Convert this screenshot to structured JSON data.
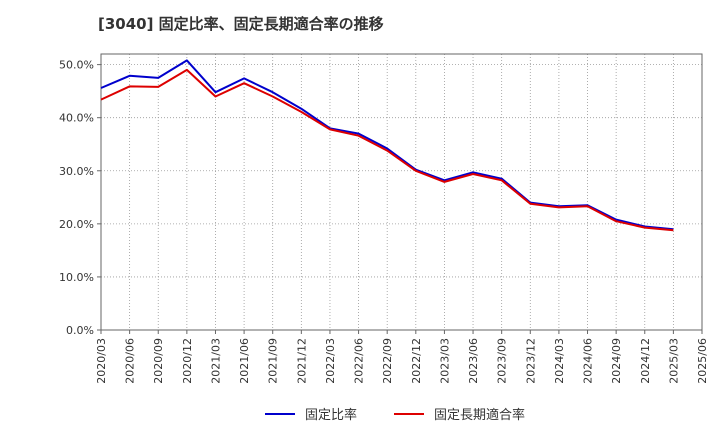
{
  "chart_data": {
    "type": "line",
    "title": "[3040]  固定比率、固定長期適合率の推移",
    "xlabel": "",
    "ylabel": "",
    "ylim": [
      0,
      52
    ],
    "y_ticks": [
      0,
      10,
      20,
      30,
      40,
      50
    ],
    "y_tick_labels": [
      "0.0%",
      "10.0%",
      "20.0%",
      "30.0%",
      "40.0%",
      "50.0%"
    ],
    "grid": true,
    "legend_position": "bottom-center",
    "categories": [
      "2020/03",
      "2020/06",
      "2020/09",
      "2020/12",
      "2021/03",
      "2021/06",
      "2021/09",
      "2021/12",
      "2022/03",
      "2022/06",
      "2022/09",
      "2022/12",
      "2023/03",
      "2023/06",
      "2023/09",
      "2023/12",
      "2024/03",
      "2024/06",
      "2024/09",
      "2024/12",
      "2025/03",
      "2025/06"
    ],
    "series": [
      {
        "name": "固定比率",
        "color": "#0000cc",
        "values": [
          45.6,
          47.9,
          47.5,
          50.8,
          44.8,
          47.4,
          44.8,
          41.7,
          38.0,
          37.0,
          34.2,
          30.2,
          28.2,
          29.7,
          28.5,
          24.0,
          23.3,
          23.5,
          20.8,
          19.5,
          19.0,
          null
        ]
      },
      {
        "name": "固定長期適合率",
        "color": "#dd0000",
        "values": [
          43.4,
          45.9,
          45.8,
          49.0,
          44.0,
          46.5,
          44.0,
          41.1,
          37.8,
          36.6,
          33.8,
          30.0,
          27.9,
          29.4,
          28.2,
          23.8,
          23.1,
          23.3,
          20.5,
          19.3,
          18.8,
          null
        ]
      }
    ]
  }
}
